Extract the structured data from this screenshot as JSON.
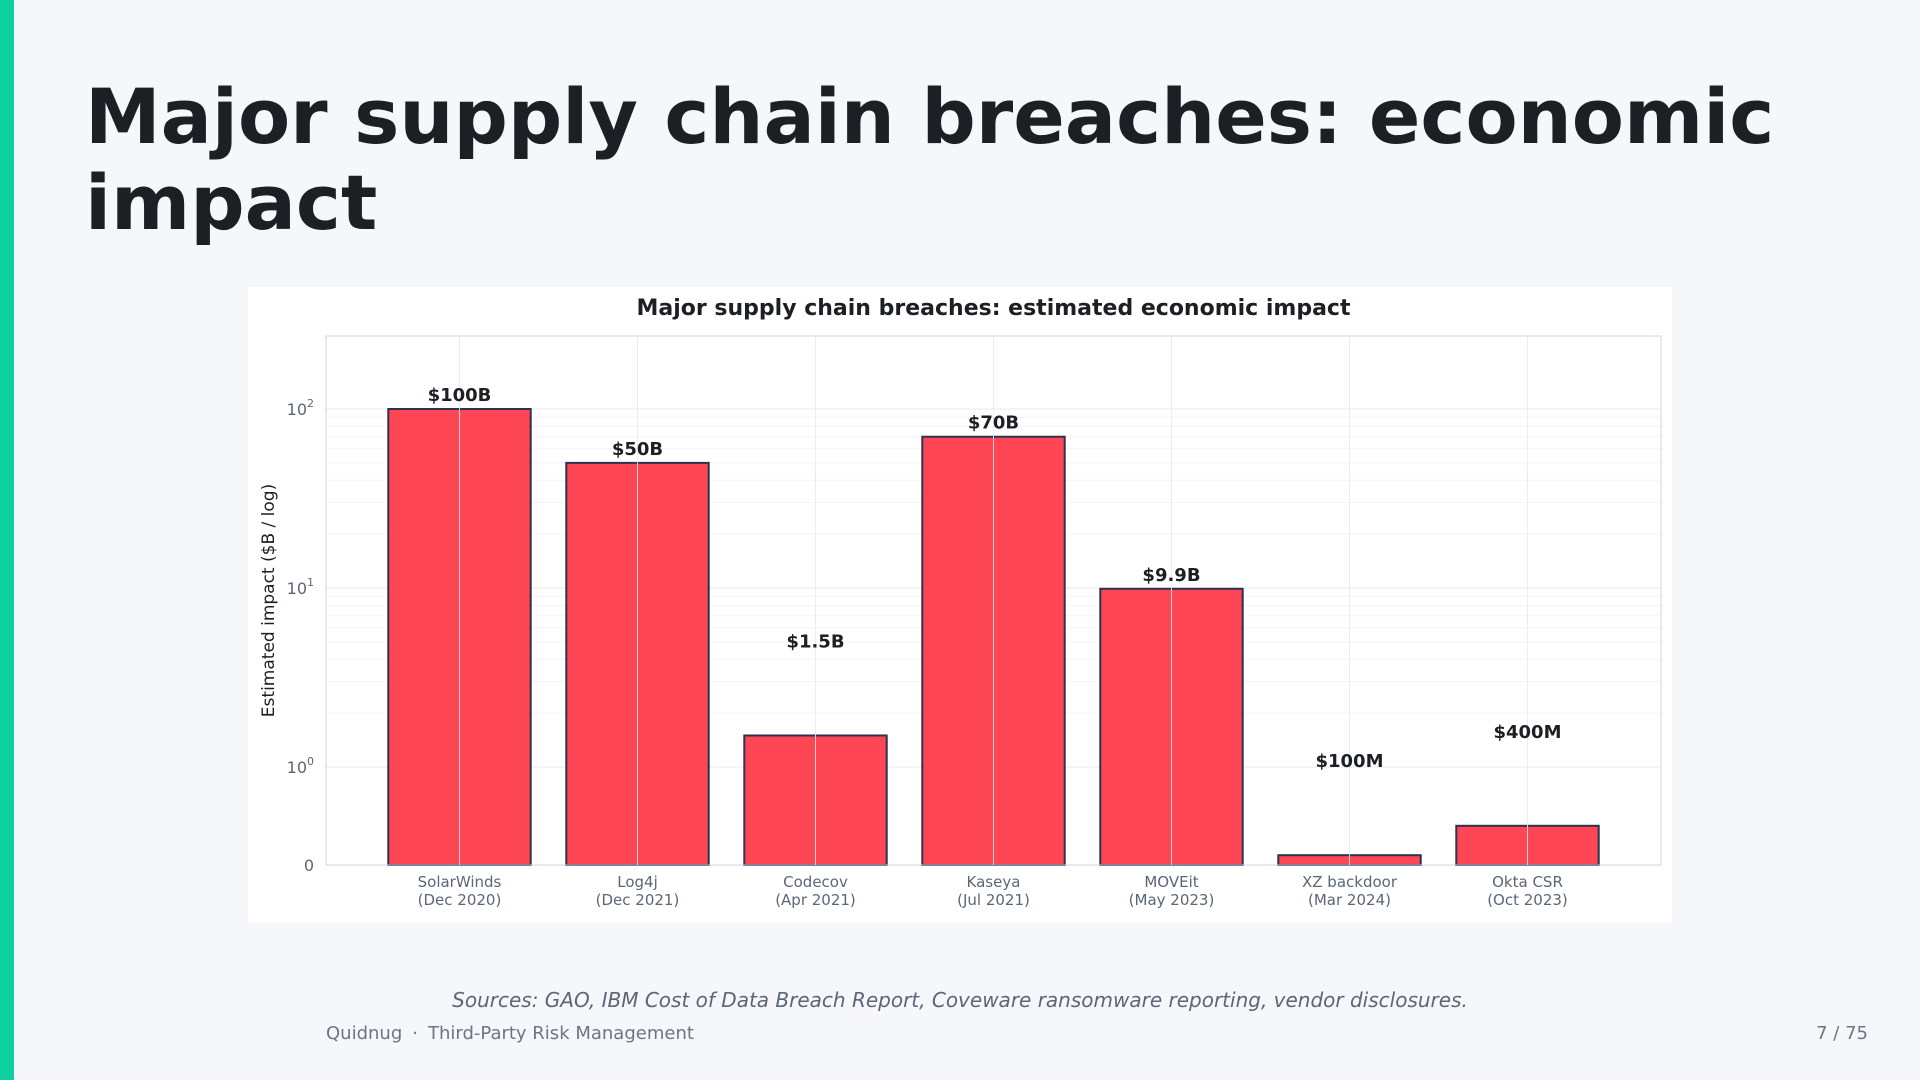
{
  "slide": {
    "title": "Major supply chain breaches: economic impact",
    "sources": "Sources: GAO, IBM Cost of Data Breach Report, Coveware ransomware reporting, vendor disclosures.",
    "footer_brand": "Quidnug",
    "footer_separator": "·",
    "footer_deck": "Third-Party Risk Management",
    "page_number": "7 / 75"
  },
  "colors": {
    "accent": "#0fd0a0",
    "bar_fill": "#ff4655",
    "bar_edge": "#2b3350",
    "title_text": "#1c1f24"
  },
  "chart_data": {
    "type": "bar",
    "title": "Major supply chain breaches: estimated economic impact",
    "xlabel": "",
    "ylabel": "Estimated impact ($B / log)",
    "yscale": "symlog",
    "y_ticks": [
      {
        "value": 0,
        "base": "0",
        "exp": ""
      },
      {
        "value": 1,
        "base": "10",
        "exp": "0"
      },
      {
        "value": 10,
        "base": "10",
        "exp": "1"
      },
      {
        "value": 100,
        "base": "10",
        "exp": "2"
      }
    ],
    "grid": true,
    "categories": [
      [
        "SolarWinds",
        "(Dec 2020)"
      ],
      [
        "Log4j",
        "(Dec 2021)"
      ],
      [
        "Codecov",
        "(Apr 2021)"
      ],
      [
        "Kaseya",
        "(Jul 2021)"
      ],
      [
        "MOVEit",
        "(May 2023)"
      ],
      [
        "XZ backdoor",
        "(Mar 2024)"
      ],
      [
        "Okta CSR",
        "(Oct 2023)"
      ]
    ],
    "values": [
      100,
      50,
      1.5,
      70,
      9.9,
      0.1,
      0.4
    ],
    "data_labels": [
      "$100B",
      "$50B",
      "$1.5B",
      "$70B",
      "$9.9B",
      "$100M",
      "$400M"
    ]
  }
}
